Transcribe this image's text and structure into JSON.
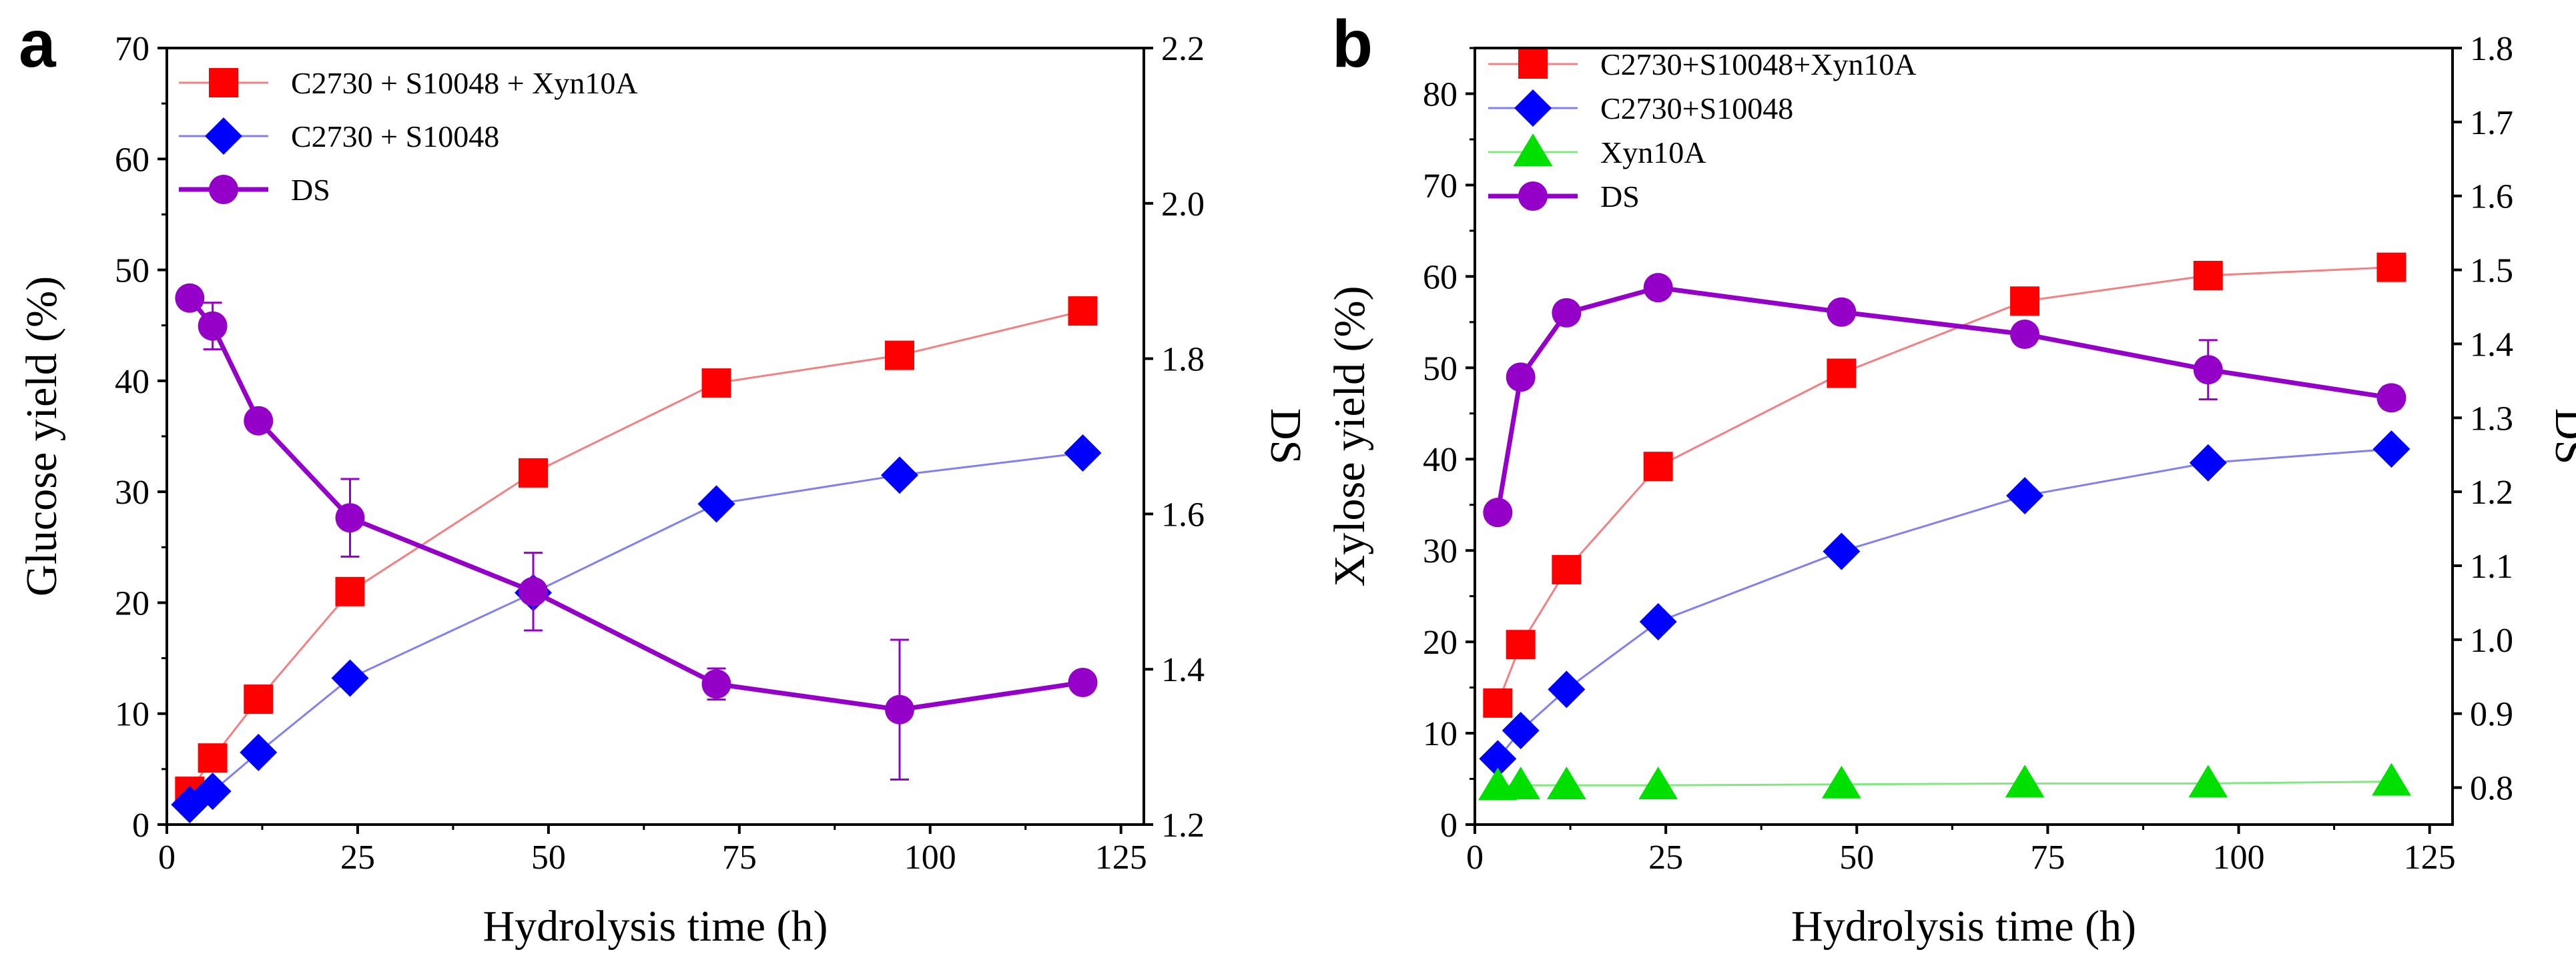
{
  "panels": [
    {
      "id": "a",
      "letter": "a",
      "chart": {
        "type": "line",
        "title": "",
        "xlabel": "Hydrolysis time (h)",
        "ylabel_left": "Glucose yield (%)",
        "ylabel_right": "DS",
        "xlim": [
          0,
          128
        ],
        "ylim_left": [
          0,
          70
        ],
        "ylim_right": [
          1.2,
          2.2
        ],
        "xticks": [
          0,
          25,
          50,
          75,
          100,
          125
        ],
        "xtick_labels": [
          "0",
          "25",
          "50",
          "75",
          "100",
          "125"
        ],
        "yticks_left": [
          0,
          10,
          20,
          30,
          40,
          50,
          60,
          70
        ],
        "ytick_labels_left": [
          "0",
          "10",
          "20",
          "30",
          "40",
          "50",
          "60",
          "70"
        ],
        "yticks_right": [
          1.2,
          1.4,
          1.6,
          1.8,
          2.0,
          2.2
        ],
        "ytick_labels_right": [
          "1.2",
          "1.4",
          "1.6",
          "1.8",
          "2.0",
          "2.2"
        ],
        "grid": false,
        "legend_position": "top-left",
        "series": [
          {
            "name": "C2730 + S10048 + Xyn10A",
            "axis": "left",
            "marker": "square",
            "color": "#ff0000",
            "line_color": "#f28080",
            "x": [
              3,
              6,
              12,
              24,
              48,
              72,
              96,
              120
            ],
            "values": [
              3.0,
              6.0,
              11.3,
              21.0,
              31.7,
              39.8,
              42.3,
              46.3
            ],
            "errors": [
              0,
              0,
              0,
              0,
              0.8,
              0,
              0,
              0
            ]
          },
          {
            "name": "C2730 + S10048",
            "axis": "left",
            "marker": "diamond",
            "color": "#0000ff",
            "line_color": "#8080f0",
            "x": [
              3,
              6,
              12,
              24,
              48,
              72,
              96,
              120
            ],
            "values": [
              1.8,
              3.0,
              6.5,
              13.2,
              20.9,
              28.9,
              31.5,
              33.5
            ],
            "errors": [
              0,
              0,
              0,
              0,
              0,
              0,
              0,
              0
            ]
          },
          {
            "name": "DS",
            "axis": "right",
            "marker": "circle",
            "color": "#9400c8",
            "line_color": "#9400c8",
            "x": [
              3,
              6,
              12,
              24,
              48,
              72,
              96,
              120
            ],
            "values": [
              1.878,
              1.842,
              1.72,
              1.595,
              1.5,
              1.381,
              1.348,
              1.383
            ],
            "errors": [
              0,
              0.03,
              0,
              0.05,
              0.05,
              0.02,
              0.09,
              0
            ]
          }
        ]
      }
    },
    {
      "id": "b",
      "letter": "b",
      "chart": {
        "type": "line",
        "title": "",
        "xlabel": "Hydrolysis time (h)",
        "ylabel_left": "Xylose yield (%)",
        "ylabel_right": "DS",
        "xlim": [
          0,
          128
        ],
        "ylim_left": [
          0,
          85
        ],
        "ylim_right": [
          0.75,
          1.8
        ],
        "xticks": [
          0,
          25,
          50,
          75,
          100,
          125
        ],
        "xtick_labels": [
          "0",
          "25",
          "50",
          "75",
          "100",
          "125"
        ],
        "yticks_left": [
          0,
          10,
          20,
          30,
          40,
          50,
          60,
          70,
          80
        ],
        "ytick_labels_left": [
          "0",
          "10",
          "20",
          "30",
          "40",
          "50",
          "60",
          "70",
          "80"
        ],
        "yticks_right": [
          0.8,
          0.9,
          1.0,
          1.1,
          1.2,
          1.3,
          1.4,
          1.5,
          1.6,
          1.7,
          1.8
        ],
        "ytick_labels_right": [
          "0.8",
          "0.9",
          "1.0",
          "1.1",
          "1.2",
          "1.3",
          "1.4",
          "1.5",
          "1.6",
          "1.7",
          "1.8"
        ],
        "grid": false,
        "legend_position": "top-left",
        "series": [
          {
            "name": "C2730+S10048+Xyn10A",
            "axis": "left",
            "marker": "square",
            "color": "#ff0000",
            "line_color": "#f28080",
            "x": [
              3,
              6,
              12,
              24,
              48,
              72,
              96,
              120
            ],
            "values": [
              13.3,
              19.7,
              27.9,
              39.2,
              49.4,
              57.3,
              60.1,
              61.0
            ],
            "errors": [
              0,
              0,
              0,
              0,
              0,
              0,
              0,
              0
            ]
          },
          {
            "name": "C2730+S10048",
            "axis": "left",
            "marker": "diamond",
            "color": "#0000ff",
            "line_color": "#8080f0",
            "x": [
              3,
              6,
              12,
              24,
              48,
              72,
              96,
              120
            ],
            "values": [
              7.2,
              10.3,
              14.8,
              22.2,
              29.9,
              36.0,
              39.6,
              41.1
            ],
            "errors": [
              0,
              0,
              0,
              0,
              0,
              0,
              0,
              0
            ]
          },
          {
            "name": "Xyn10A",
            "axis": "left",
            "marker": "triangle",
            "color": "#00e000",
            "line_color": "#80e880",
            "x": [
              3,
              6,
              12,
              24,
              48,
              72,
              96,
              120
            ],
            "values": [
              4.2,
              4.3,
              4.3,
              4.3,
              4.4,
              4.5,
              4.5,
              4.7
            ],
            "errors": [
              0,
              0,
              0,
              0,
              0,
              0,
              0,
              0
            ]
          },
          {
            "name": "DS",
            "axis": "right",
            "marker": "circle",
            "color": "#9400c8",
            "line_color": "#9400c8",
            "x": [
              3,
              6,
              12,
              24,
              48,
              72,
              96,
              120
            ],
            "values": [
              1.172,
              1.355,
              1.442,
              1.476,
              1.443,
              1.413,
              1.365,
              1.327
            ],
            "errors": [
              0,
              0,
              0,
              0,
              0,
              0,
              0.04,
              0.015
            ]
          }
        ]
      }
    }
  ],
  "chart_data": [
    {
      "type": "line",
      "title": "",
      "xlabel": "Hydrolysis time (h)",
      "ylabel": "Glucose yield (%)",
      "y2label": "DS",
      "x": [
        3,
        6,
        12,
        24,
        48,
        72,
        96,
        120
      ],
      "xlim": [
        0,
        128
      ],
      "ylim": [
        0,
        70
      ],
      "y2lim": [
        1.2,
        2.2
      ],
      "series": [
        {
          "name": "C2730 + S10048 + Xyn10A",
          "axis": "left",
          "values": [
            3.0,
            6.0,
            11.3,
            21.0,
            31.7,
            39.8,
            42.3,
            46.3
          ]
        },
        {
          "name": "C2730 + S10048",
          "axis": "left",
          "values": [
            1.8,
            3.0,
            6.5,
            13.2,
            20.9,
            28.9,
            31.5,
            33.5
          ]
        },
        {
          "name": "DS",
          "axis": "right",
          "values": [
            1.878,
            1.842,
            1.72,
            1.595,
            1.5,
            1.381,
            1.348,
            1.383
          ]
        }
      ]
    },
    {
      "type": "line",
      "title": "",
      "xlabel": "Hydrolysis time (h)",
      "ylabel": "Xylose yield (%)",
      "y2label": "DS",
      "x": [
        3,
        6,
        12,
        24,
        48,
        72,
        96,
        120
      ],
      "xlim": [
        0,
        128
      ],
      "ylim": [
        0,
        85
      ],
      "y2lim": [
        0.75,
        1.8
      ],
      "series": [
        {
          "name": "C2730+S10048+Xyn10A",
          "axis": "left",
          "values": [
            13.3,
            19.7,
            27.9,
            39.2,
            49.4,
            57.3,
            60.1,
            61.0
          ]
        },
        {
          "name": "C2730+S10048",
          "axis": "left",
          "values": [
            7.2,
            10.3,
            14.8,
            22.2,
            29.9,
            36.0,
            39.6,
            41.1
          ]
        },
        {
          "name": "Xyn10A",
          "axis": "left",
          "values": [
            4.2,
            4.3,
            4.3,
            4.3,
            4.4,
            4.5,
            4.5,
            4.7
          ]
        },
        {
          "name": "DS",
          "axis": "right",
          "values": [
            1.172,
            1.355,
            1.442,
            1.476,
            1.443,
            1.413,
            1.365,
            1.327
          ]
        }
      ]
    }
  ]
}
